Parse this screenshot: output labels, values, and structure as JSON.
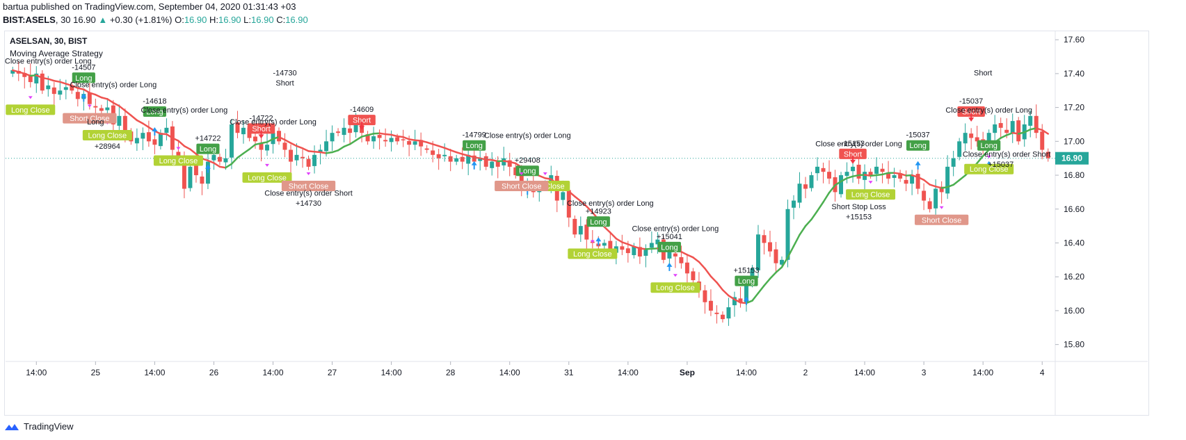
{
  "header": {
    "publisher_line": "bartua published on TradingView.com, September 04, 2020 01:31:43 +03",
    "symbol": "BIST:ASELS",
    "interval": "30",
    "last": "16.90",
    "change": "+0.30 (+1.81%)",
    "open_label": "O:",
    "open": "16.90",
    "high_label": "H:",
    "high": "16.90",
    "low_label": "L:",
    "low": "16.90",
    "close_label": "C:",
    "close": "16.90"
  },
  "legend": {
    "title": "ASELSAN, 30, BIST",
    "strategy": "Moving Average Strategy"
  },
  "footer": {
    "brand": "TradingView"
  },
  "colors": {
    "up": "#26a69a",
    "down": "#ef5350",
    "ma_up": "#4caf50",
    "ma_down": "#ef5350",
    "long_tag": "#43a047",
    "long_close_tag": "#b2d235",
    "short_tag": "#f05350",
    "short_close_tag": "#e0978a",
    "arrow_long": "#2196f3",
    "arrow_short": "#f23645",
    "arrow_close": "#e040fb"
  },
  "chart_data": {
    "type": "candlestick",
    "title": "ASELSAN, 30, BIST",
    "ylim": [
      15.7,
      17.65
    ],
    "y_ticks": [
      "17.60",
      "17.40",
      "17.20",
      "17.00",
      "16.80",
      "16.60",
      "16.40",
      "16.20",
      "16.00",
      "15.80"
    ],
    "x_ticks": [
      {
        "label": "14:00",
        "bar": 4
      },
      {
        "label": "25",
        "bar": 14
      },
      {
        "label": "14:00",
        "bar": 24
      },
      {
        "label": "26",
        "bar": 34
      },
      {
        "label": "14:00",
        "bar": 44
      },
      {
        "label": "27",
        "bar": 54
      },
      {
        "label": "14:00",
        "bar": 64
      },
      {
        "label": "28",
        "bar": 74
      },
      {
        "label": "14:00",
        "bar": 84
      },
      {
        "label": "31",
        "bar": 94
      },
      {
        "label": "14:00",
        "bar": 104
      },
      {
        "label": "Sep",
        "bar": 114
      },
      {
        "label": "14:00",
        "bar": 124
      },
      {
        "label": "2",
        "bar": 134
      },
      {
        "label": "14:00",
        "bar": 144
      },
      {
        "label": "3",
        "bar": 154
      },
      {
        "label": "14:00",
        "bar": 164
      },
      {
        "label": "4",
        "bar": 174
      }
    ],
    "last_price": 16.9,
    "last_price_label": "16.90",
    "close_series": [
      17.42,
      17.4,
      17.38,
      17.35,
      17.4,
      17.3,
      17.33,
      17.28,
      17.3,
      17.32,
      17.3,
      17.25,
      17.28,
      17.22,
      17.2,
      17.18,
      17.2,
      17.1,
      17.15,
      17.05,
      17.0,
      17.02,
      17.05,
      17.0,
      16.98,
      17.05,
      17.08,
      16.95,
      16.9,
      16.72,
      16.85,
      16.8,
      16.75,
      16.88,
      16.92,
      16.88,
      16.9,
      17.1,
      17.05,
      17.08,
      17.02,
      17.0,
      16.95,
      16.98,
      17.05,
      17.0,
      16.95,
      16.88,
      16.92,
      16.9,
      16.85,
      16.92,
      16.95,
      17.0,
      17.05,
      17.05,
      17.08,
      17.05,
      17.1,
      17.05,
      17.0,
      17.03,
      17.02,
      17.0,
      17.02,
      17.0,
      17.01,
      16.98,
      17.0,
      16.97,
      16.95,
      16.92,
      16.9,
      16.92,
      16.88,
      16.9,
      16.88,
      16.92,
      16.88,
      16.9,
      16.85,
      16.88,
      16.85,
      16.9,
      16.85,
      16.8,
      16.72,
      16.75,
      16.7,
      16.72,
      16.75,
      16.8,
      16.65,
      16.7,
      16.55,
      16.45,
      16.5,
      16.42,
      16.4,
      16.38,
      16.4,
      16.35,
      16.38,
      16.36,
      16.34,
      16.38,
      16.32,
      16.36,
      16.4,
      16.42,
      16.3,
      16.35,
      16.32,
      16.28,
      16.22,
      16.18,
      16.12,
      16.05,
      16.0,
      15.98,
      15.95,
      16.02,
      16.08,
      16.05,
      16.15,
      16.25,
      16.45,
      16.4,
      16.35,
      16.28,
      16.3,
      16.6,
      16.65,
      16.75,
      16.72,
      16.8,
      16.85,
      16.82,
      16.78,
      16.7,
      16.8,
      16.82,
      16.85,
      16.78,
      16.82,
      16.8,
      16.85,
      16.82,
      16.78,
      16.8,
      16.78,
      16.75,
      16.8,
      16.72,
      16.65,
      16.6,
      16.72,
      16.7,
      16.85,
      16.9,
      17.0,
      17.05,
      17.02,
      17.0,
      16.98,
      17.05,
      17.1,
      17.08,
      17.05,
      17.12,
      17.0,
      17.1,
      17.15,
      17.05,
      16.95,
      16.9
    ],
    "trades": [
      {
        "tag": "Long",
        "bar": 12,
        "price": 17.3,
        "pos": "above",
        "pl": "-14507"
      },
      {
        "tag": "Long",
        "bar": 24,
        "price": 17.1,
        "pos": "above",
        "pl": "-14618"
      },
      {
        "tag": "Long",
        "bar": 33,
        "price": 16.88,
        "pos": "above",
        "pl": "+14722"
      },
      {
        "tag": "Long",
        "bar": 78,
        "price": 16.9,
        "pos": "above",
        "pl": "-14799"
      },
      {
        "tag": "Long",
        "bar": 87,
        "price": 16.75,
        "pos": "above",
        "pl": "+29408"
      },
      {
        "tag": "Long",
        "bar": 99,
        "price": 16.45,
        "pos": "above",
        "pl": "+14923"
      },
      {
        "tag": "Long",
        "bar": 111,
        "price": 16.3,
        "pos": "above",
        "pl": "+15041"
      },
      {
        "tag": "Long",
        "bar": 124,
        "price": 16.1,
        "pos": "above",
        "pl": "+15153"
      },
      {
        "tag": "Long",
        "bar": 153,
        "price": 16.9,
        "pos": "above",
        "pl": "-15037"
      },
      {
        "tag": "Long",
        "bar": 165,
        "price": 16.9,
        "pos": "above",
        "pl": ""
      },
      {
        "tag": "Short",
        "bar": 42,
        "price": 17.0,
        "pos": "above",
        "pl": "-14722"
      },
      {
        "tag": "Short",
        "bar": 59,
        "price": 17.05,
        "pos": "above",
        "pl": "-14609"
      },
      {
        "tag": "Short",
        "bar": 142,
        "price": 16.85,
        "pos": "above",
        "pl": "-15153"
      },
      {
        "tag": "Short",
        "bar": 162,
        "price": 17.1,
        "pos": "above",
        "pl": "-15037"
      },
      {
        "tag": "Long Close",
        "bar": 3,
        "price": 17.25,
        "pos": "below",
        "pl": ""
      },
      {
        "tag": "Long Close",
        "bar": 16,
        "price": 17.1,
        "pos": "below",
        "pl": "+28964"
      },
      {
        "tag": "Long Close",
        "bar": 28,
        "price": 16.95,
        "pos": "below",
        "pl": ""
      },
      {
        "tag": "Long Close",
        "bar": 43,
        "price": 16.85,
        "pos": "below",
        "pl": ""
      },
      {
        "tag": "Long Close",
        "bar": 90,
        "price": 16.8,
        "pos": "below",
        "pl": ""
      },
      {
        "tag": "Long Close",
        "bar": 98,
        "price": 16.4,
        "pos": "below",
        "pl": ""
      },
      {
        "tag": "Long Close",
        "bar": 112,
        "price": 16.2,
        "pos": "below",
        "pl": ""
      },
      {
        "tag": "Long Close",
        "bar": 145,
        "price": 16.75,
        "pos": "below",
        "pl": ""
      },
      {
        "tag": "Long Close",
        "bar": 165,
        "price": 16.9,
        "pos": "below",
        "pl": ""
      },
      {
        "tag": "Short Close",
        "bar": 13,
        "price": 17.2,
        "pos": "below",
        "pl": ""
      },
      {
        "tag": "Short Close",
        "bar": 50,
        "price": 16.8,
        "pos": "below",
        "pl": ""
      },
      {
        "tag": "Short Close",
        "bar": 86,
        "price": 16.8,
        "pos": "below",
        "pl": ""
      },
      {
        "tag": "Short Close",
        "bar": 157,
        "price": 16.6,
        "pos": "below",
        "pl": ""
      }
    ],
    "annotations": [
      {
        "text": "Close entry(s) order Long",
        "bar": 6,
        "price": 17.46
      },
      {
        "text": "Close entry(s) order Long",
        "bar": 17,
        "price": 17.32
      },
      {
        "text": "Close entry(s) order Long",
        "bar": 29,
        "price": 17.17
      },
      {
        "text": "Close entry(s) order Long",
        "bar": 44,
        "price": 17.1
      },
      {
        "text": "Close entry(s) order Long",
        "bar": 87,
        "price": 17.02
      },
      {
        "text": "Close entry(s) order Long",
        "bar": 101,
        "price": 16.62
      },
      {
        "text": "Close entry(s) order Long",
        "bar": 112,
        "price": 16.47
      },
      {
        "text": "Close entry(s) order Long",
        "bar": 143,
        "price": 16.97
      },
      {
        "text": "Close entry(s) order Long",
        "bar": 165,
        "price": 17.17
      },
      {
        "text": "Close entry(s) order Short",
        "bar": 50,
        "price": 16.68
      },
      {
        "text": "Close entry(s) order Short",
        "bar": 168,
        "price": 16.91
      },
      {
        "text": "Short Stop Loss",
        "bar": 143,
        "price": 16.6
      },
      {
        "text": "+14730",
        "bar": 50,
        "price": 16.62
      },
      {
        "text": "+15153",
        "bar": 143,
        "price": 16.54
      },
      {
        "text": "+15037",
        "bar": 167,
        "price": 16.85
      },
      {
        "text": "Short",
        "bar": 46,
        "price": 17.33
      },
      {
        "text": "-14730",
        "bar": 46,
        "price": 17.39
      },
      {
        "text": "Short",
        "bar": 164,
        "price": 17.39
      },
      {
        "text": "Long",
        "bar": 14,
        "price": 17.1
      }
    ]
  }
}
